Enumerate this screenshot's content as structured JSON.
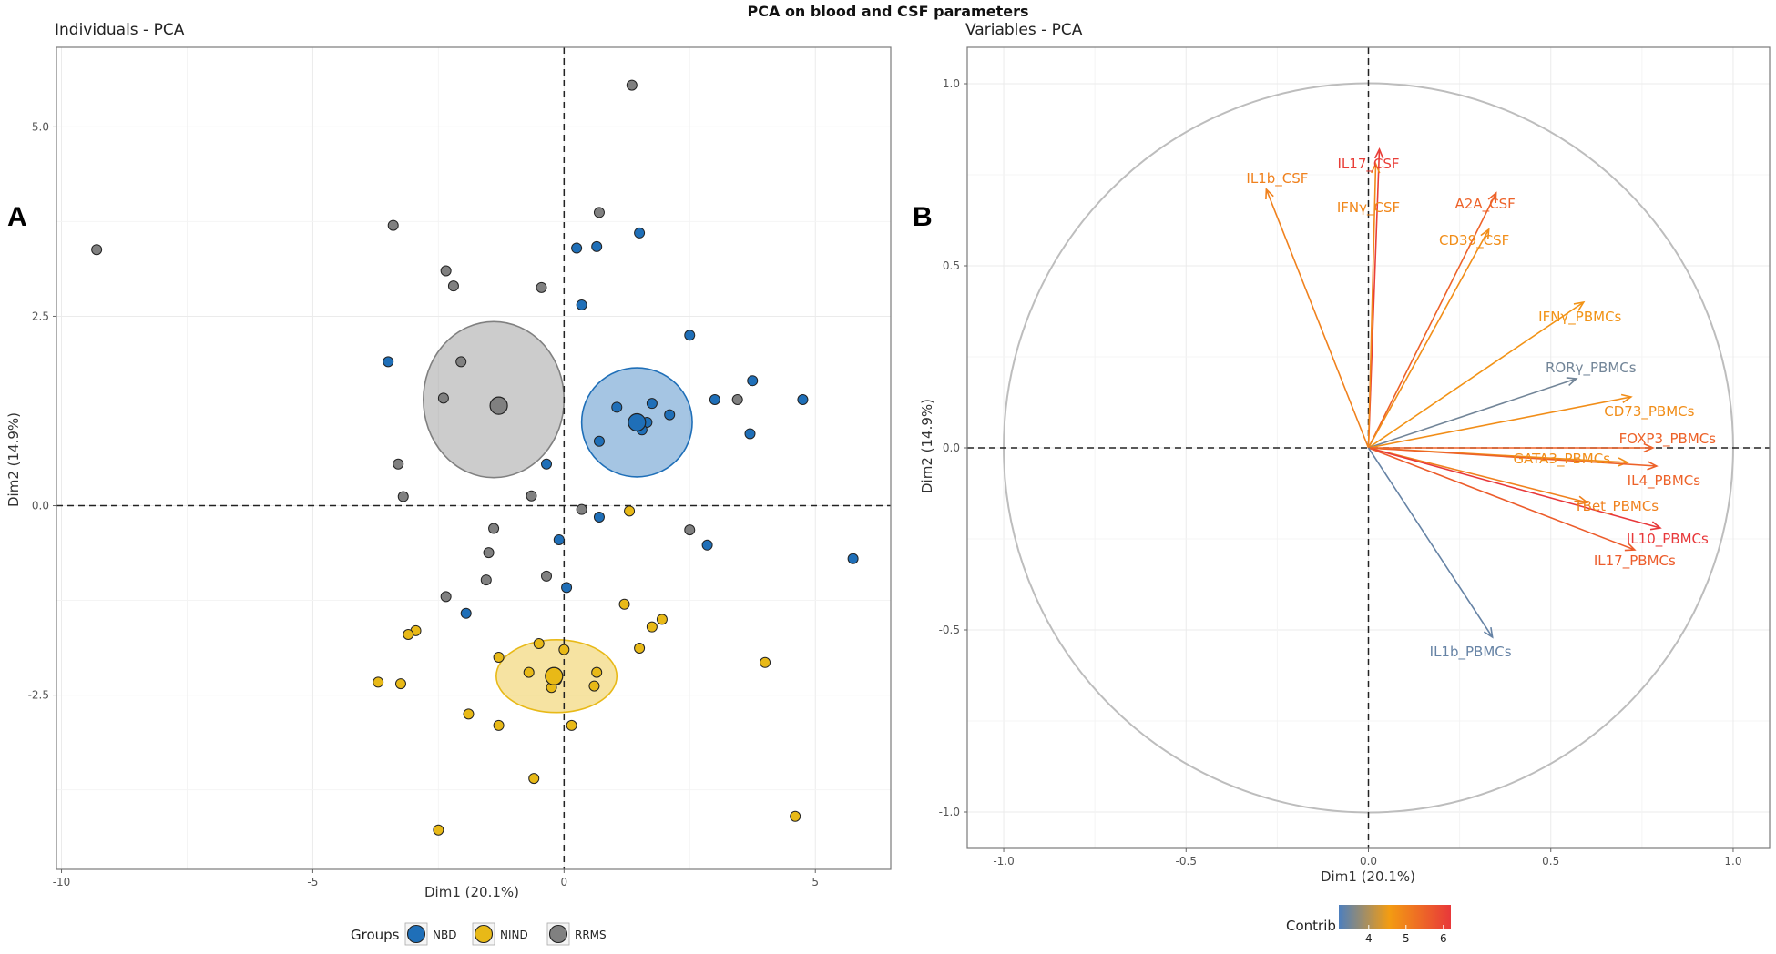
{
  "figure_title": "PCA on blood and CSF parameters",
  "colors": {
    "NBD": "#1f6fb8",
    "NIND": "#e8b917",
    "RRMS": "#808080",
    "contrib_low": "#4d7fbe",
    "contrib_mid": "#f39c12",
    "contrib_high": "#e8383a"
  },
  "chart_data": [
    {
      "panel_letter": "A",
      "type": "scatter",
      "title": "Individuals - PCA",
      "xlabel": "Dim1 (20.1%)",
      "ylabel": "Dim2 (14.9%)",
      "xlim": [
        -10.1,
        6.5
      ],
      "ylim": [
        -4.8,
        6.05
      ],
      "xticks": [
        -10,
        -5,
        0,
        5
      ],
      "xtick_labels": [
        "-10",
        "-5",
        "0",
        "5"
      ],
      "yticks": [
        -2.5,
        0.0,
        2.5,
        5.0
      ],
      "ytick_labels": [
        "-2.5",
        "0.0",
        "2.5",
        "5.0"
      ],
      "legend_title": "Groups",
      "legend_position": "bottom",
      "groups": [
        {
          "name": "NBD",
          "centroid": [
            1.45,
            1.1
          ],
          "ellipse": {
            "center": [
              1.45,
              1.1
            ],
            "rx": 1.1,
            "ry": 0.72
          },
          "points": [
            [
              0.25,
              3.4
            ],
            [
              0.65,
              3.42
            ],
            [
              1.5,
              3.6
            ],
            [
              0.35,
              2.65
            ],
            [
              2.5,
              2.25
            ],
            [
              -3.5,
              1.9
            ],
            [
              3.75,
              1.65
            ],
            [
              4.75,
              1.4
            ],
            [
              3.0,
              1.4
            ],
            [
              1.05,
              1.3
            ],
            [
              1.75,
              1.35
            ],
            [
              2.1,
              1.2
            ],
            [
              1.65,
              1.1
            ],
            [
              1.55,
              1.0
            ],
            [
              0.7,
              0.85
            ],
            [
              3.7,
              0.95
            ],
            [
              -0.35,
              0.55
            ],
            [
              -0.1,
              -0.45
            ],
            [
              0.7,
              -0.15
            ],
            [
              2.85,
              -0.52
            ],
            [
              5.75,
              -0.7
            ],
            [
              0.05,
              -1.08
            ],
            [
              -1.95,
              -1.42
            ]
          ]
        },
        {
          "name": "NIND",
          "centroid": [
            -0.2,
            -2.25
          ],
          "ellipse": {
            "center": [
              -0.15,
              -2.25
            ],
            "rx": 1.2,
            "ry": 0.48
          },
          "points": [
            [
              1.3,
              -0.07
            ],
            [
              1.2,
              -1.3
            ],
            [
              1.95,
              -1.5
            ],
            [
              1.75,
              -1.6
            ],
            [
              1.5,
              -1.88
            ],
            [
              -2.95,
              -1.65
            ],
            [
              -3.1,
              -1.7
            ],
            [
              -0.5,
              -1.82
            ],
            [
              0.0,
              -1.9
            ],
            [
              -1.3,
              -2.0
            ],
            [
              4.0,
              -2.07
            ],
            [
              -0.7,
              -2.2
            ],
            [
              -0.15,
              -2.3
            ],
            [
              0.65,
              -2.2
            ],
            [
              0.6,
              -2.38
            ],
            [
              -0.25,
              -2.4
            ],
            [
              -3.7,
              -2.33
            ],
            [
              -3.25,
              -2.35
            ],
            [
              -1.9,
              -2.75
            ],
            [
              -1.3,
              -2.9
            ],
            [
              0.15,
              -2.9
            ],
            [
              -0.6,
              -3.6
            ],
            [
              4.6,
              -4.1
            ],
            [
              -2.5,
              -4.28
            ]
          ]
        },
        {
          "name": "RRMS",
          "centroid": [
            -1.3,
            1.32
          ],
          "ellipse": {
            "center": [
              -1.4,
              1.4
            ],
            "rx": 1.4,
            "ry": 1.03
          },
          "points": [
            [
              1.35,
              5.55
            ],
            [
              -9.3,
              3.38
            ],
            [
              -3.4,
              3.7
            ],
            [
              0.7,
              3.87
            ],
            [
              -2.35,
              3.1
            ],
            [
              -2.2,
              2.9
            ],
            [
              -0.45,
              2.88
            ],
            [
              -2.05,
              1.9
            ],
            [
              -2.4,
              1.42
            ],
            [
              3.45,
              1.4
            ],
            [
              -3.3,
              0.55
            ],
            [
              -3.2,
              0.12
            ],
            [
              -0.65,
              0.13
            ],
            [
              0.35,
              -0.05
            ],
            [
              2.5,
              -0.32
            ],
            [
              -1.4,
              -0.3
            ],
            [
              -1.5,
              -0.62
            ],
            [
              -0.35,
              -0.93
            ],
            [
              -1.55,
              -0.98
            ],
            [
              -2.35,
              -1.2
            ]
          ]
        }
      ]
    },
    {
      "panel_letter": "B",
      "type": "vector",
      "title": "Variables - PCA",
      "xlabel": "Dim1 (20.1%)",
      "ylabel": "Dim2 (14.9%)",
      "xlim": [
        -1.1,
        1.1
      ],
      "ylim": [
        -1.1,
        1.1
      ],
      "xticks": [
        -1.0,
        -0.5,
        0.0,
        0.5,
        1.0
      ],
      "xtick_labels": [
        "-1.0",
        "-0.5",
        "0.0",
        "0.5",
        "1.0"
      ],
      "yticks": [
        -1.0,
        -0.5,
        0.0,
        0.5,
        1.0
      ],
      "ytick_labels": [
        "-1.0",
        "-0.5",
        "0.0",
        "0.5",
        "1.0"
      ],
      "legend_title": "Contrib",
      "legend_position": "bottom",
      "contrib_range": [
        3.2,
        6.2
      ],
      "contrib_ticks": [
        4,
        5,
        6
      ],
      "contrib_tick_labels": [
        "4",
        "5",
        "6"
      ],
      "variables": [
        {
          "name": "IL17_CSF",
          "x": 0.03,
          "y": 0.82,
          "contrib": 6.1,
          "lx": 0.0,
          "ly": 0.78
        },
        {
          "name": "IFNγ_CSF",
          "x": 0.02,
          "y": 0.78,
          "contrib": 4.9,
          "lx": 0.0,
          "ly": 0.66
        },
        {
          "name": "IL1b_CSF",
          "x": -0.28,
          "y": 0.71,
          "contrib": 5.0,
          "lx": -0.25,
          "ly": 0.74
        },
        {
          "name": "A2A_CSF",
          "x": 0.35,
          "y": 0.7,
          "contrib": 5.5,
          "lx": 0.32,
          "ly": 0.67
        },
        {
          "name": "CD39_CSF",
          "x": 0.33,
          "y": 0.6,
          "contrib": 4.8,
          "lx": 0.29,
          "ly": 0.57
        },
        {
          "name": "IFNγ_PBMCs",
          "x": 0.59,
          "y": 0.4,
          "contrib": 4.7,
          "lx": 0.58,
          "ly": 0.36
        },
        {
          "name": "RORγ_PBMCs",
          "x": 0.57,
          "y": 0.19,
          "contrib": 3.5,
          "lx": 0.61,
          "ly": 0.22
        },
        {
          "name": "CD73_PBMCs",
          "x": 0.72,
          "y": 0.14,
          "contrib": 4.8,
          "lx": 0.77,
          "ly": 0.1
        },
        {
          "name": "FOXP3_PBMCs",
          "x": 0.78,
          "y": 0.0,
          "contrib": 5.5,
          "lx": 0.82,
          "ly": 0.025
        },
        {
          "name": "GATA3_PBMCs",
          "x": 0.71,
          "y": -0.04,
          "contrib": 4.8,
          "lx": 0.53,
          "ly": -0.03
        },
        {
          "name": "IL4_PBMCs",
          "x": 0.79,
          "y": -0.05,
          "contrib": 5.5,
          "lx": 0.81,
          "ly": -0.09
        },
        {
          "name": "TBet_PBMCs",
          "x": 0.6,
          "y": -0.15,
          "contrib": 5.0,
          "lx": 0.68,
          "ly": -0.16
        },
        {
          "name": "IL10_PBMCs",
          "x": 0.8,
          "y": -0.22,
          "contrib": 6.2,
          "lx": 0.82,
          "ly": -0.25
        },
        {
          "name": "IL17_PBMCs",
          "x": 0.73,
          "y": -0.28,
          "contrib": 5.6,
          "lx": 0.73,
          "ly": -0.31
        },
        {
          "name": "IL1b_PBMCs",
          "x": 0.34,
          "y": -0.52,
          "contrib": 3.4,
          "lx": 0.28,
          "ly": -0.56
        }
      ]
    }
  ]
}
